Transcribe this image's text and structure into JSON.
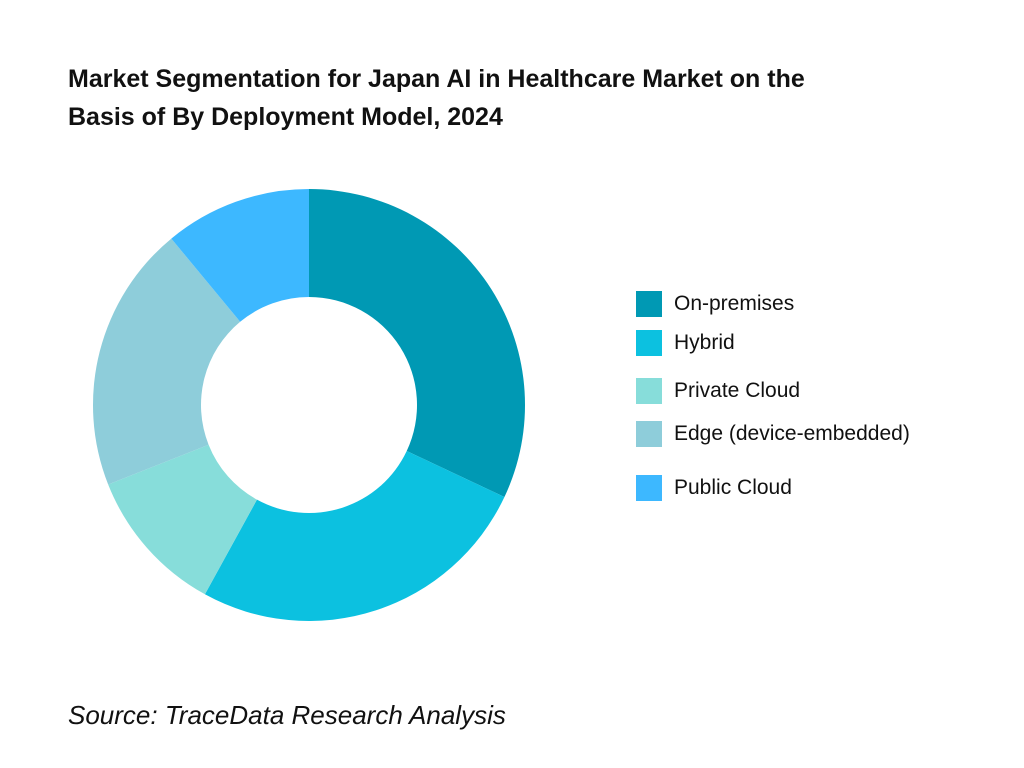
{
  "chart_data": {
    "type": "pie",
    "title_lines": [
      "Market Segmentation for Japan AI in Healthcare Market on the",
      "Basis of By Deployment Model, 2024"
    ],
    "categories": [
      "On-premises",
      "Hybrid",
      "Private Cloud",
      "Edge (device-embedded)",
      "Public Cloud"
    ],
    "values": [
      32,
      26,
      11,
      20,
      11
    ],
    "colors": [
      "#0099B4",
      "#0CC1E0",
      "#87DDDA",
      "#8ECDDA",
      "#3DB8FF"
    ],
    "legend_position": "right"
  },
  "source": "Source: TraceData Research Analysis"
}
